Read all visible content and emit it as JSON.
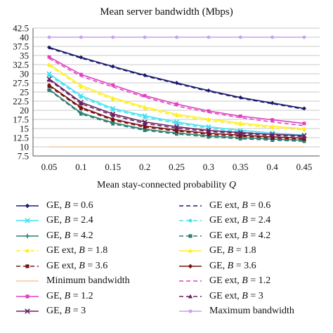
{
  "chart_data": {
    "type": "line",
    "title": "Mean server bandwidth (Mbps)",
    "xlabel": "Mean stay-connected probability Q",
    "ylabel": "",
    "x": [
      0.05,
      0.1,
      0.15,
      0.2,
      0.25,
      0.3,
      0.35,
      0.4,
      0.45
    ],
    "x_tick_labels": [
      "0.05",
      "0.1",
      "0.15",
      "0.2",
      "0.25",
      "0.3",
      "0.35",
      "0.4",
      "0.45"
    ],
    "ylim": [
      7.5,
      42.5
    ],
    "y_ticks": [
      7.5,
      10,
      12.5,
      15,
      17.5,
      20,
      22.5,
      25,
      27.5,
      30,
      32.5,
      35,
      37.5,
      40,
      42.5
    ],
    "y_tick_labels": [
      "7.5",
      "10",
      "12.5",
      "15",
      "17.5",
      "20",
      "22.5",
      "25",
      "27.5",
      "30",
      "32.5",
      "35",
      "37.5",
      "40",
      "42.5"
    ],
    "grid": true,
    "legend_position": "bottom",
    "series": [
      {
        "name_prefix": "GE, ",
        "name_var": "B",
        "name_suffix": " = 0.6",
        "color": "#1a1a6e",
        "dash": "",
        "marker": "diamond",
        "values": [
          37.2,
          34.5,
          32.0,
          29.6,
          27.5,
          25.4,
          23.5,
          22.0,
          20.5
        ]
      },
      {
        "name_prefix": "GE ext, ",
        "name_var": "B",
        "name_suffix": " = 0.6",
        "color": "#1a1a6e",
        "dash": "6,4",
        "marker": "none",
        "values": [
          37.0,
          34.3,
          31.8,
          29.4,
          27.3,
          25.2,
          23.3,
          21.8,
          20.3
        ]
      },
      {
        "name_prefix": "GE, ",
        "name_var": "B",
        "name_suffix": " = 2.4",
        "color": "#40e0f0",
        "dash": "",
        "marker": "x",
        "values": [
          30.0,
          24.0,
          20.5,
          18.5,
          16.8,
          15.5,
          14.5,
          13.8,
          13.2
        ]
      },
      {
        "name_prefix": "GE ext, ",
        "name_var": "B",
        "name_suffix": " = 2.4",
        "color": "#40e0f0",
        "dash": "6,4",
        "marker": "circle",
        "values": [
          29.6,
          23.6,
          20.1,
          18.1,
          16.4,
          15.1,
          14.1,
          13.4,
          12.8
        ]
      },
      {
        "name_prefix": "GE, ",
        "name_var": "B",
        "name_suffix": " = 4.2",
        "color": "#2a7f72",
        "dash": "",
        "marker": "plus",
        "values": [
          25.7,
          19.3,
          16.6,
          14.8,
          13.8,
          13.0,
          12.5,
          12.1,
          11.8
        ]
      },
      {
        "name_prefix": "GE ext, ",
        "name_var": "B",
        "name_suffix": " = 4.2",
        "color": "#2a7f72",
        "dash": "6,4",
        "marker": "square",
        "values": [
          25.5,
          19.0,
          16.3,
          14.5,
          13.5,
          12.7,
          12.2,
          11.8,
          11.5
        ]
      },
      {
        "name_prefix": "GE ext, ",
        "name_var": "B",
        "name_suffix": " = 1.8",
        "color": "#ffee22",
        "dash": "6,4",
        "marker": "circle",
        "values": [
          32.3,
          26.3,
          23.0,
          20.5,
          18.5,
          17.2,
          16.1,
          15.2,
          14.6
        ]
      },
      {
        "name_prefix": "GE, ",
        "name_var": "B",
        "name_suffix": " = 1.8",
        "color": "#ffee22",
        "dash": "",
        "marker": "triangle",
        "values": [
          32.6,
          26.8,
          23.4,
          20.9,
          18.9,
          17.6,
          16.5,
          15.6,
          15.0
        ]
      },
      {
        "name_prefix": "GE ext, ",
        "name_var": "B",
        "name_suffix": " = 3.6",
        "color": "#7a1010",
        "dash": "6,4",
        "marker": "square",
        "values": [
          26.6,
          20.5,
          17.3,
          15.4,
          14.3,
          13.4,
          12.9,
          12.4,
          12.1
        ]
      },
      {
        "name_prefix": "GE, ",
        "name_var": "B",
        "name_suffix": " = 3.6",
        "color": "#7a1010",
        "dash": "",
        "marker": "diamond",
        "values": [
          26.9,
          20.8,
          17.6,
          15.7,
          14.6,
          13.7,
          13.2,
          12.7,
          12.4
        ]
      },
      {
        "name_prefix": "Minimum bandwidth",
        "name_var": "",
        "name_suffix": "",
        "color": "#f5c6a0",
        "dash": "",
        "marker": "none",
        "values": [
          10,
          10,
          10,
          10,
          10,
          10,
          10,
          10,
          10
        ]
      },
      {
        "name_prefix": "GE ext, ",
        "name_var": "B",
        "name_suffix": " = 1.2",
        "color": "#e040c0",
        "dash": "6,4",
        "marker": "none",
        "values": [
          34.2,
          29.3,
          26.4,
          23.6,
          21.2,
          19.4,
          18.0,
          16.8,
          15.8
        ]
      },
      {
        "name_prefix": "GE, ",
        "name_var": "B",
        "name_suffix": " = 1.2",
        "color": "#e040c0",
        "dash": "",
        "marker": "square",
        "values": [
          34.6,
          29.8,
          26.9,
          24.0,
          21.7,
          19.8,
          18.4,
          17.4,
          16.4
        ]
      },
      {
        "name_prefix": "GE ext, ",
        "name_var": "B",
        "name_suffix": " = 3",
        "color": "#6a2060",
        "dash": "6,4",
        "marker": "triangle",
        "values": [
          28.3,
          21.8,
          18.6,
          16.4,
          15.1,
          14.2,
          13.6,
          13.1,
          12.8
        ]
      },
      {
        "name_prefix": "GE, ",
        "name_var": "B",
        "name_suffix": " = 3",
        "color": "#6a2060",
        "dash": "",
        "marker": "x",
        "values": [
          28.6,
          22.2,
          19.0,
          16.8,
          15.5,
          14.5,
          13.9,
          13.4,
          13.1
        ]
      },
      {
        "name_prefix": "Maximum bandwidth",
        "name_var": "",
        "name_suffix": "",
        "color": "#c9a0ee",
        "dash": "",
        "marker": "circle",
        "values": [
          40,
          40,
          40,
          40,
          40,
          40,
          40,
          40,
          40
        ]
      }
    ],
    "legend_order": [
      0,
      1,
      2,
      3,
      4,
      5,
      6,
      7,
      8,
      9,
      10,
      11,
      12,
      13,
      14,
      15
    ]
  }
}
